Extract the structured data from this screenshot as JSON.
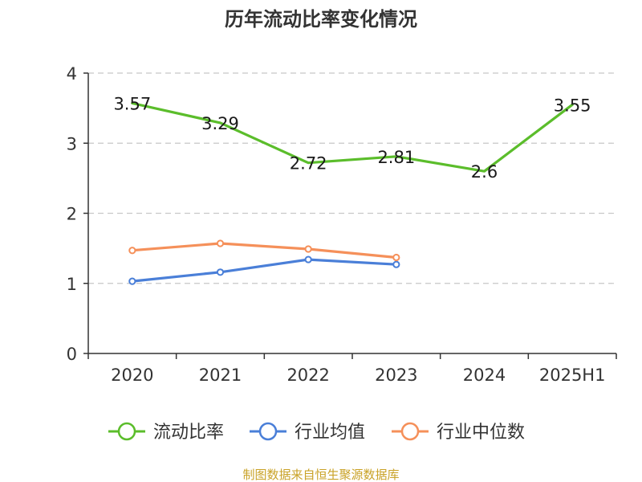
{
  "source_text": "制图数据来自恒生聚源数据库",
  "chart_data": {
    "type": "line",
    "title": "历年流动比率变化情况",
    "xlabel": "",
    "ylabel": "",
    "categories": [
      "2020",
      "2021",
      "2022",
      "2023",
      "2024",
      "2025H1"
    ],
    "ylim": [
      0,
      4
    ],
    "yticks": [
      0,
      1,
      2,
      3,
      4
    ],
    "grid": true,
    "legend_position": "bottom",
    "series": [
      {
        "name": "流动比率",
        "color": "#5bbd2b",
        "values": [
          3.57,
          3.29,
          2.72,
          2.81,
          2.6,
          3.55
        ],
        "labels": [
          "3.57",
          "3.29",
          "2.72",
          "2.81",
          "2.6",
          "3.55"
        ],
        "show_labels": true,
        "markers": false
      },
      {
        "name": "行业均值",
        "color": "#4a7fd8",
        "values": [
          1.03,
          1.16,
          1.34,
          1.27,
          null,
          null
        ],
        "show_labels": false,
        "markers": true
      },
      {
        "name": "行业中位数",
        "color": "#f5905a",
        "values": [
          1.47,
          1.57,
          1.49,
          1.37,
          null,
          null
        ],
        "show_labels": false,
        "markers": true
      }
    ]
  }
}
